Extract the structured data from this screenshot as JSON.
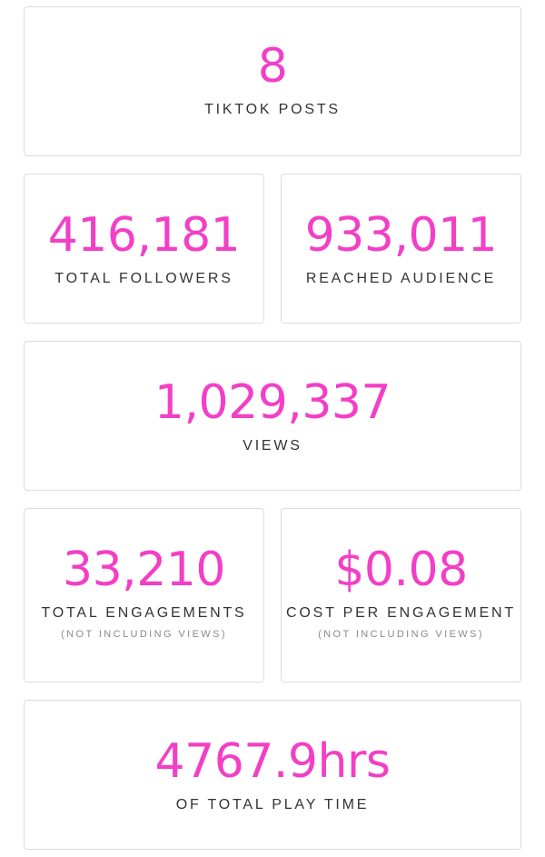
{
  "accent_color": "#f23fc6",
  "stats": {
    "posts": {
      "value": "8",
      "label": "TIKTOK POSTS"
    },
    "followers": {
      "value": "416,181",
      "label": "TOTAL FOLLOWERS"
    },
    "reached": {
      "value": "933,011",
      "label": "REACHED AUDIENCE"
    },
    "views": {
      "value": "1,029,337",
      "label": "VIEWS"
    },
    "engagements": {
      "value": "33,210",
      "label": "TOTAL ENGAGEMENTS",
      "note": "(NOT INCLUDING VIEWS)"
    },
    "cost_per_engagement": {
      "value": "$0.08",
      "label": "COST PER ENGAGEMENT",
      "note": "(NOT INCLUDING VIEWS)"
    },
    "play_time": {
      "value": "4767.9hrs",
      "label": "OF TOTAL PLAY TIME"
    }
  }
}
